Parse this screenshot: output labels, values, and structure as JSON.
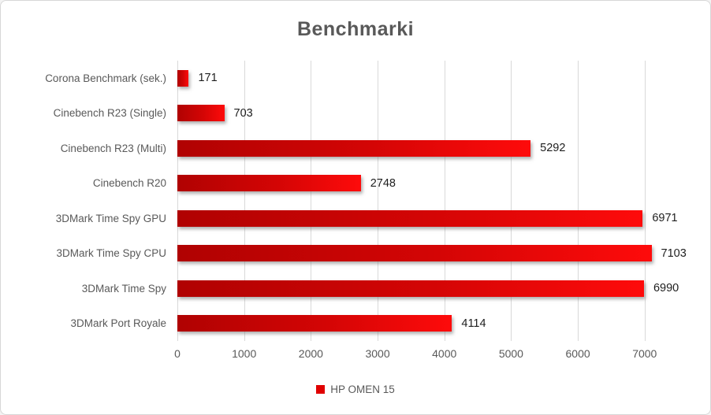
{
  "title": "Benchmarki",
  "legend": {
    "label": "HP OMEN 15",
    "marker_color": "#e00000"
  },
  "colors": {
    "bar_gradient_start": "#b00202",
    "bar_gradient_end": "#fe0b0b",
    "title_text": "#595959",
    "axis_text": "#595959",
    "value_text": "#1e1e1e",
    "gridline": "#d9d9d9",
    "frame_border": "#d7d7d7",
    "background": "#ffffff"
  },
  "chart_data": {
    "type": "bar",
    "orientation": "horizontal",
    "title": "Benchmarki",
    "categories": [
      "Corona Benchmark (sek.)",
      "Cinebench R23 (Single)",
      "Cinebench R23 (Multi)",
      "Cinebench R20",
      "3DMark Time Spy GPU",
      "3DMark Time Spy CPU",
      "3DMark Time Spy",
      "3DMark Port Royale"
    ],
    "series": [
      {
        "name": "HP OMEN 15",
        "values": [
          171,
          703,
          5292,
          2748,
          6971,
          7103,
          6990,
          4114
        ]
      }
    ],
    "data_labels": [
      "171",
      "703",
      "5292",
      "2748",
      "6971",
      "7103",
      "6990",
      "4114"
    ],
    "xlabel": "",
    "ylabel": "",
    "xlim": [
      0,
      7900
    ],
    "xticks": [
      0,
      1000,
      2000,
      3000,
      4000,
      5000,
      6000,
      7000
    ],
    "xtick_labels": [
      "0",
      "1000",
      "2000",
      "3000",
      "4000",
      "5000",
      "6000",
      "7000"
    ],
    "grid": true,
    "legend_position": "bottom"
  }
}
